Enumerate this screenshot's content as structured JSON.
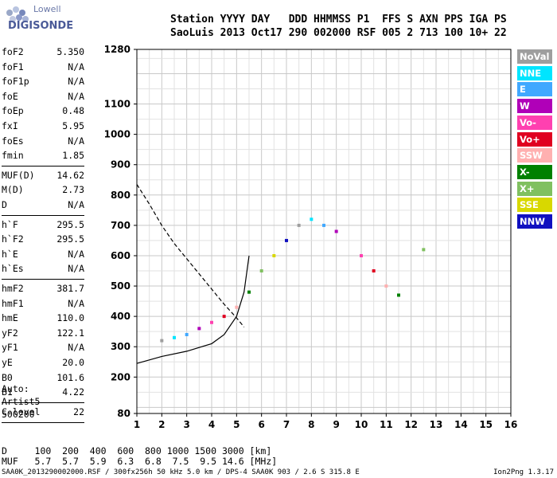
{
  "logo": {
    "line1": "Lowell",
    "line2": "DIGISONDE"
  },
  "header": {
    "row1": "Station YYYY DAY   DDD HHMMSS P1  FFS S AXN PPS IGA PS",
    "row2": "SaoLuis 2013 Oct17 290 002000 RSF 005 2 713 100 10+ 22"
  },
  "params_group1": [
    {
      "k": "foF2",
      "v": "5.350"
    },
    {
      "k": "foF1",
      "v": "N/A"
    },
    {
      "k": "foF1p",
      "v": "N/A"
    },
    {
      "k": "foE",
      "v": "N/A"
    },
    {
      "k": "foEp",
      "v": "0.48"
    },
    {
      "k": "fxI",
      "v": "5.95"
    },
    {
      "k": "foEs",
      "v": "N/A"
    },
    {
      "k": "fmin",
      "v": "1.85"
    }
  ],
  "params_group2": [
    {
      "k": "MUF(D)",
      "v": "14.62"
    },
    {
      "k": "M(D)",
      "v": "2.73"
    },
    {
      "k": "D",
      "v": "N/A"
    }
  ],
  "params_group3": [
    {
      "k": "h`F",
      "v": "295.5"
    },
    {
      "k": "h`F2",
      "v": "295.5"
    },
    {
      "k": "h`E",
      "v": "N/A"
    },
    {
      "k": "h`Es",
      "v": "N/A"
    }
  ],
  "params_group4": [
    {
      "k": "hmF2",
      "v": "381.7"
    },
    {
      "k": "hmF1",
      "v": "N/A"
    },
    {
      "k": "hmE",
      "v": "110.0"
    },
    {
      "k": "yF2",
      "v": "122.1"
    },
    {
      "k": "yF1",
      "v": "N/A"
    },
    {
      "k": "yE",
      "v": "20.0"
    },
    {
      "k": "B0",
      "v": "101.6"
    },
    {
      "k": "B1",
      "v": "4.22"
    }
  ],
  "params_group5": [
    {
      "k": "C-level",
      "v": "22"
    }
  ],
  "auto": {
    "line1": "Auto:",
    "line2": "Artist5",
    "line3": "500200"
  },
  "legend": [
    {
      "label": "NoVal",
      "color": "#9e9e9e"
    },
    {
      "label": "NNE",
      "color": "#00e5ff"
    },
    {
      "label": "E",
      "color": "#40a8ff"
    },
    {
      "label": "W",
      "color": "#b000b8"
    },
    {
      "label": "Vo-",
      "color": "#ff40b0"
    },
    {
      "label": "Vo+",
      "color": "#e00020"
    },
    {
      "label": "SSW",
      "color": "#ffb0b0"
    },
    {
      "label": "X-",
      "color": "#008000"
    },
    {
      "label": "X+",
      "color": "#80c060"
    },
    {
      "label": "SSE",
      "color": "#d8d800"
    },
    {
      "label": "NNW",
      "color": "#1010c0"
    }
  ],
  "chart_data": {
    "type": "scatter",
    "xlim": [
      1,
      16
    ],
    "ylim": [
      80,
      1280
    ],
    "x_ticks": [
      "1",
      "2",
      "3",
      "4",
      "5",
      "6",
      "7",
      "8",
      "9",
      "10",
      "11",
      "12",
      "13",
      "14",
      "15",
      "16"
    ],
    "y_ticks": [
      "80",
      "200",
      "300",
      "400",
      "500",
      "600",
      "700",
      "800",
      "900",
      "1000",
      "1100",
      "1280"
    ],
    "grid": true,
    "series": [
      {
        "values": [
          [
            2.0,
            320
          ],
          [
            2.5,
            330
          ],
          [
            3.0,
            340
          ],
          [
            3.5,
            360
          ],
          [
            4.0,
            380
          ],
          [
            4.5,
            400
          ],
          [
            5.0,
            430
          ],
          [
            5.5,
            480
          ],
          [
            6.0,
            550
          ],
          [
            6.5,
            600
          ],
          [
            7.0,
            650
          ],
          [
            7.5,
            700
          ],
          [
            8.0,
            720
          ],
          [
            8.5,
            700
          ],
          [
            9.0,
            680
          ],
          [
            10.0,
            600
          ],
          [
            10.5,
            550
          ],
          [
            11.0,
            500
          ],
          [
            11.5,
            470
          ],
          [
            12.5,
            620
          ]
        ]
      }
    ],
    "curves": [
      {
        "values": [
          [
            1.0,
            245
          ],
          [
            2.0,
            268
          ],
          [
            3.0,
            285
          ],
          [
            4.0,
            310
          ],
          [
            4.5,
            340
          ],
          [
            5.0,
            400
          ],
          [
            5.3,
            480
          ],
          [
            5.5,
            600
          ]
        ]
      },
      {
        "values": [
          [
            1.0,
            835
          ],
          [
            1.5,
            770
          ],
          [
            2.0,
            700
          ],
          [
            2.5,
            640
          ],
          [
            3.0,
            590
          ],
          [
            3.5,
            540
          ],
          [
            4.0,
            490
          ],
          [
            4.5,
            440
          ],
          [
            5.0,
            395
          ],
          [
            5.3,
            365
          ]
        ]
      }
    ]
  },
  "bottom": {
    "row1": "D     100  200  400  600  800 1000 1500 3000 [km]",
    "row2": "MUF   5.7  5.7  5.9  6.3  6.8  7.5  9.5 14.6 [MHz]"
  },
  "footer": {
    "left": "SAA0K_2013290002000.RSF / 300fx256h 50 kHz 5.0 km / DPS-4 SAA0K 903 / 2.6 S 315.8 E",
    "right": "Ion2Png 1.3.17"
  }
}
